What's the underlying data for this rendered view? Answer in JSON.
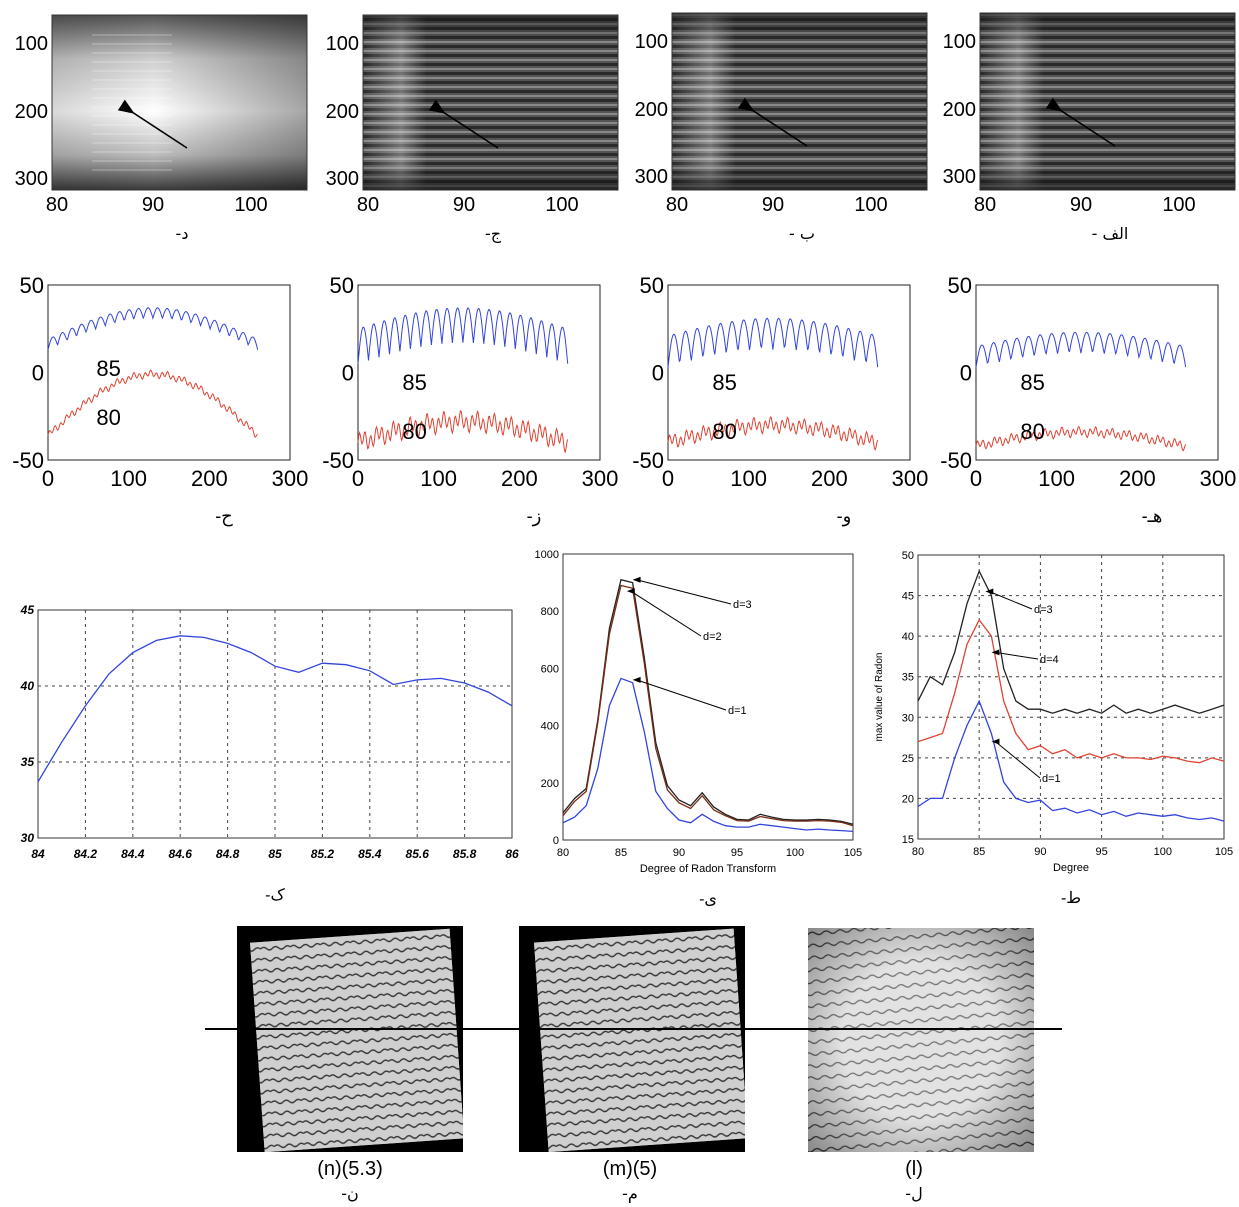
{
  "row1": {
    "panels": [
      {
        "caption": "د-",
        "yticks": [
          "100",
          "200",
          "300"
        ],
        "xticks": [
          "80",
          "90",
          "100"
        ],
        "variant": "smooth"
      },
      {
        "caption": "ج-",
        "yticks": [
          "100",
          "200",
          "300"
        ],
        "xticks": [
          "80",
          "90",
          "100"
        ],
        "variant": "striped"
      },
      {
        "caption": "ب -",
        "yticks": [
          "100",
          "200",
          "300"
        ],
        "xticks": [
          "80",
          "90",
          "100"
        ],
        "variant": "striped"
      },
      {
        "caption": "الف -",
        "yticks": [
          "100",
          "200",
          "300"
        ],
        "xticks": [
          "80",
          "90",
          "100"
        ],
        "variant": "striped"
      }
    ]
  },
  "row2": {
    "panels": [
      {
        "caption": "ح-",
        "labels": [
          "85",
          "80"
        ],
        "yticks": [
          "50",
          "0",
          "-50"
        ],
        "xticks": [
          "0",
          "100",
          "200",
          "300"
        ]
      },
      {
        "caption": "ز-",
        "labels": [
          "85",
          "80"
        ],
        "yticks": [
          "50",
          "0",
          "-50"
        ],
        "xticks": [
          "0",
          "100",
          "200",
          "300"
        ]
      },
      {
        "caption": "و-",
        "labels": [
          "85",
          "80"
        ],
        "yticks": [
          "50",
          "0",
          "-50"
        ],
        "xticks": [
          "0",
          "100",
          "200",
          "300"
        ]
      },
      {
        "caption": "هـ-",
        "labels": [
          "85",
          "80"
        ],
        "yticks": [
          "50",
          "0",
          "-50"
        ],
        "xticks": [
          "0",
          "100",
          "200",
          "300"
        ]
      }
    ]
  },
  "colors": {
    "blue": "#3344dd",
    "red": "#dd4433",
    "black": "#222222",
    "brown": "#7a2a12",
    "grid": "#444444"
  },
  "chart_data": [
    {
      "type": "line",
      "caption": "ک-",
      "x": [
        84,
        84.1,
        84.2,
        84.3,
        84.4,
        84.5,
        84.6,
        84.7,
        84.8,
        84.9,
        85,
        85.1,
        85.2,
        85.3,
        85.4,
        85.5,
        85.6,
        85.7,
        85.8,
        85.9,
        86
      ],
      "series": [
        {
          "values": [
            33.7,
            36.3,
            38.7,
            40.8,
            42.2,
            43.0,
            43.3,
            43.2,
            42.8,
            42.2,
            41.3,
            40.9,
            41.5,
            41.4,
            41.0,
            40.1,
            40.4,
            40.5,
            40.2,
            39.6,
            38.7
          ]
        }
      ],
      "xticks": [
        "84",
        "84.2",
        "84.4",
        "84.6",
        "84.8",
        "85",
        "85.2",
        "85.4",
        "85.6",
        "85.8",
        "86"
      ],
      "yticks": [
        "30",
        "35",
        "40",
        "45"
      ],
      "xlim": [
        84,
        86
      ],
      "ylim": [
        30,
        45
      ],
      "grid": true
    },
    {
      "type": "line",
      "caption": "ی-",
      "xlabel": "Degree of Radon Transform",
      "x": [
        80,
        81,
        82,
        83,
        84,
        85,
        86,
        87,
        88,
        89,
        90,
        91,
        92,
        93,
        94,
        95,
        96,
        97,
        98,
        99,
        100,
        101,
        102,
        103,
        104,
        105
      ],
      "series": [
        {
          "name": "d=3",
          "values": [
            95,
            145,
            180,
            420,
            740,
            910,
            900,
            640,
            340,
            190,
            140,
            120,
            165,
            115,
            90,
            72,
            70,
            90,
            80,
            72,
            70,
            70,
            72,
            70,
            65,
            55
          ]
        },
        {
          "name": "d=2",
          "values": [
            85,
            135,
            170,
            410,
            720,
            890,
            880,
            620,
            320,
            175,
            130,
            110,
            155,
            105,
            85,
            68,
            66,
            82,
            75,
            68,
            66,
            66,
            68,
            66,
            62,
            50
          ]
        },
        {
          "name": "d=1",
          "values": [
            60,
            80,
            120,
            250,
            470,
            565,
            550,
            380,
            170,
            110,
            70,
            60,
            90,
            65,
            50,
            45,
            45,
            55,
            50,
            45,
            40,
            35,
            38,
            35,
            33,
            30
          ]
        }
      ],
      "annotations": [
        "d=3",
        "d=2",
        "d=1"
      ],
      "xticks": [
        "80",
        "85",
        "90",
        "95",
        "100",
        "105"
      ],
      "yticks": [
        "0",
        "200",
        "400",
        "600",
        "800",
        "1000"
      ],
      "xlim": [
        80,
        105
      ],
      "ylim": [
        0,
        1000
      ],
      "grid": false
    },
    {
      "type": "line",
      "caption": "ط-",
      "xlabel": "Degree",
      "ylabel": "max value of Radon",
      "x": [
        80,
        81,
        82,
        83,
        84,
        85,
        86,
        87,
        88,
        89,
        90,
        91,
        92,
        93,
        94,
        95,
        96,
        97,
        98,
        99,
        100,
        101,
        102,
        103,
        104,
        105
      ],
      "series": [
        {
          "name": "d=3",
          "values": [
            32,
            35,
            34,
            38,
            44,
            48,
            45,
            36,
            32,
            31,
            31,
            30.5,
            31,
            30.5,
            31,
            30.5,
            31.5,
            30.5,
            31,
            30.5,
            31,
            31.5,
            31,
            30.5,
            31,
            31.5
          ]
        },
        {
          "name": "d=4",
          "values": [
            27,
            27.5,
            28,
            33,
            39,
            42,
            40,
            32,
            28,
            26,
            26.5,
            25.5,
            26,
            25,
            25.5,
            25,
            25.5,
            25,
            25,
            24.8,
            25.2,
            25,
            24.6,
            24.4,
            25,
            24.6
          ]
        },
        {
          "name": "d=1",
          "values": [
            19,
            20,
            20,
            25,
            29,
            32,
            28,
            22,
            20,
            19.5,
            19.8,
            18.5,
            18.8,
            18.2,
            18.6,
            18,
            18.4,
            17.8,
            18.2,
            18,
            17.8,
            18,
            17.6,
            17.4,
            17.6,
            17.2
          ]
        }
      ],
      "annotations": [
        "d=3",
        "d=4",
        "d=1"
      ],
      "xticks": [
        "80",
        "85",
        "90",
        "95",
        "100",
        "105"
      ],
      "yticks": [
        "15",
        "20",
        "25",
        "30",
        "35",
        "40",
        "45",
        "50"
      ],
      "xlim": [
        80,
        105
      ],
      "ylim": [
        15,
        50
      ],
      "grid": true
    }
  ],
  "docs": [
    {
      "label": "(n)(5.3)",
      "caption": "ن-"
    },
    {
      "label": "(m)(5)",
      "caption": "م-"
    },
    {
      "label": "(l)",
      "caption": "ل-"
    }
  ]
}
